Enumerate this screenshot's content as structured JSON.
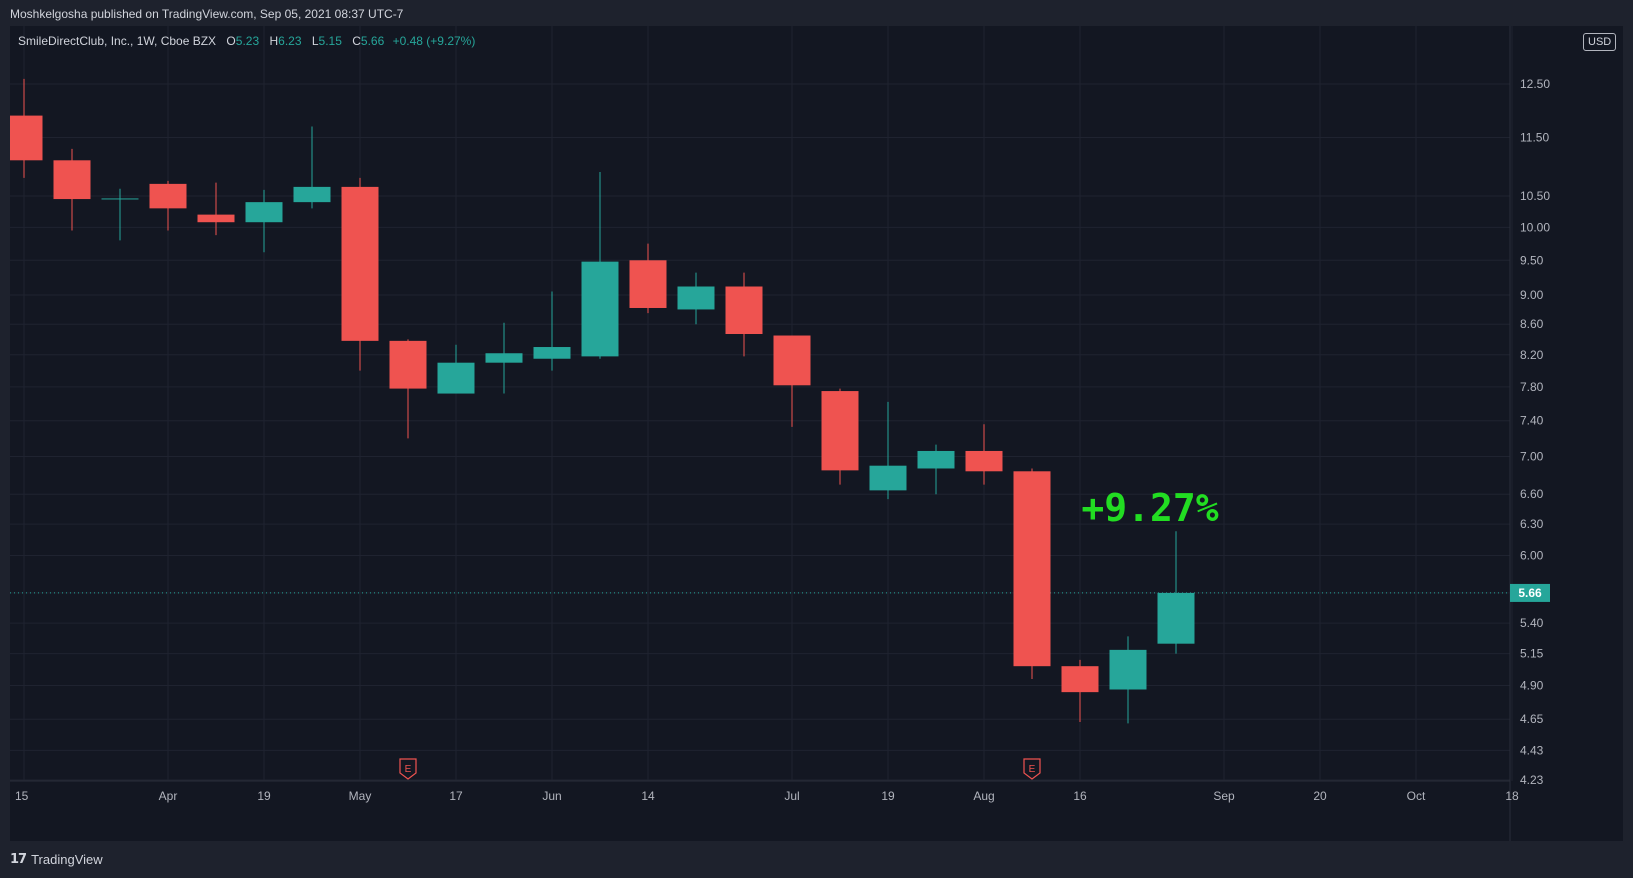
{
  "header": {
    "publish_line": "Moshkelgosha published on TradingView.com, Sep 05, 2021 08:37 UTC-7"
  },
  "legend": {
    "symbol_line": "SmileDirectClub, Inc., 1W, Cboe BZX",
    "open_label": "O",
    "open_value": "5.23",
    "high_label": "H",
    "high_value": "6.23",
    "low_label": "L",
    "low_value": "5.15",
    "close_label": "C",
    "close_value": "5.66",
    "change": "+0.48 (+9.27%)"
  },
  "currency": "USD",
  "footer": {
    "brand_logo": "17",
    "brand_name": "TradingView"
  },
  "chart_data": {
    "type": "candlestick",
    "interval": "1W",
    "y_scale": "log",
    "ylim": [
      4.2,
      13.5
    ],
    "colors": {
      "up": "#26a69a",
      "down": "#ef5350",
      "last_price_line": "#26a69a",
      "annotation": "#22dd22",
      "earnings": "#ef5350"
    },
    "y_ticks": [
      "4.23",
      "4.43",
      "4.65",
      "4.90",
      "5.15",
      "5.40",
      "5.66",
      "6.00",
      "6.30",
      "6.60",
      "7.00",
      "7.40",
      "7.80",
      "8.20",
      "8.60",
      "9.00",
      "9.50",
      "10.00",
      "10.50",
      "11.50",
      "12.50"
    ],
    "x_ticks": [
      {
        "label": "15",
        "date": "2021-03-15"
      },
      {
        "label": "Apr",
        "date": "2021-04-05"
      },
      {
        "label": "19",
        "date": "2021-04-19"
      },
      {
        "label": "May",
        "date": "2021-05-03"
      },
      {
        "label": "17",
        "date": "2021-05-17"
      },
      {
        "label": "Jun",
        "date": "2021-05-31"
      },
      {
        "label": "14",
        "date": "2021-06-14"
      },
      {
        "label": "Jul",
        "date": "2021-07-05"
      },
      {
        "label": "19",
        "date": "2021-07-19"
      },
      {
        "label": "Aug",
        "date": "2021-08-02"
      },
      {
        "label": "16",
        "date": "2021-08-16"
      },
      {
        "label": "Sep",
        "date": "2021-09-06"
      },
      {
        "label": "20",
        "date": "2021-09-20"
      },
      {
        "label": "Oct",
        "date": "2021-10-04"
      },
      {
        "label": "18",
        "date": "2021-10-18"
      }
    ],
    "candles": [
      {
        "date": "2021-03-15",
        "open": 11.9,
        "high": 12.6,
        "low": 10.8,
        "close": 11.1
      },
      {
        "date": "2021-03-22",
        "open": 11.1,
        "high": 11.3,
        "low": 9.95,
        "close": 10.45
      },
      {
        "date": "2021-03-29",
        "open": 10.45,
        "high": 10.62,
        "low": 9.8,
        "close": 10.46
      },
      {
        "date": "2021-04-05",
        "open": 10.7,
        "high": 10.75,
        "low": 9.95,
        "close": 10.3
      },
      {
        "date": "2021-04-12",
        "open": 10.2,
        "high": 10.72,
        "low": 9.88,
        "close": 10.08
      },
      {
        "date": "2021-04-19",
        "open": 10.08,
        "high": 10.6,
        "low": 9.62,
        "close": 10.4
      },
      {
        "date": "2021-04-26",
        "open": 10.4,
        "high": 11.7,
        "low": 10.3,
        "close": 10.65
      },
      {
        "date": "2021-05-03",
        "open": 10.65,
        "high": 10.8,
        "low": 8.0,
        "close": 8.38
      },
      {
        "date": "2021-05-10",
        "open": 8.38,
        "high": 8.4,
        "low": 7.2,
        "close": 7.78
      },
      {
        "date": "2021-05-17",
        "open": 7.72,
        "high": 8.33,
        "low": 7.72,
        "close": 8.1
      },
      {
        "date": "2021-05-24",
        "open": 8.1,
        "high": 8.62,
        "low": 7.72,
        "close": 8.22
      },
      {
        "date": "2021-05-31",
        "open": 8.15,
        "high": 9.05,
        "low": 8.0,
        "close": 8.3
      },
      {
        "date": "2021-06-07",
        "open": 8.18,
        "high": 10.9,
        "low": 8.15,
        "close": 9.48
      },
      {
        "date": "2021-06-14",
        "open": 9.5,
        "high": 9.75,
        "low": 8.75,
        "close": 8.82
      },
      {
        "date": "2021-06-21",
        "open": 8.8,
        "high": 9.32,
        "low": 8.6,
        "close": 9.12
      },
      {
        "date": "2021-06-28",
        "open": 9.12,
        "high": 9.32,
        "low": 8.18,
        "close": 8.47
      },
      {
        "date": "2021-07-05",
        "open": 8.45,
        "high": 8.45,
        "low": 7.33,
        "close": 7.82
      },
      {
        "date": "2021-07-12",
        "open": 7.75,
        "high": 7.78,
        "low": 6.7,
        "close": 6.85
      },
      {
        "date": "2021-07-19",
        "open": 6.64,
        "high": 7.62,
        "low": 6.55,
        "close": 6.9
      },
      {
        "date": "2021-07-26",
        "open": 6.87,
        "high": 7.13,
        "low": 6.6,
        "close": 7.06
      },
      {
        "date": "2021-08-02",
        "open": 7.06,
        "high": 7.36,
        "low": 6.7,
        "close": 6.84
      },
      {
        "date": "2021-08-09",
        "open": 6.84,
        "high": 6.87,
        "low": 4.95,
        "close": 5.05
      },
      {
        "date": "2021-08-16",
        "open": 5.05,
        "high": 5.1,
        "low": 4.63,
        "close": 4.85
      },
      {
        "date": "2021-08-23",
        "open": 4.87,
        "high": 5.29,
        "low": 4.62,
        "close": 5.18
      },
      {
        "date": "2021-08-30",
        "open": 5.23,
        "high": 6.23,
        "low": 5.15,
        "close": 5.66
      }
    ],
    "last_price": 5.66,
    "last_price_label": "5.66",
    "annotation_text": "+9.27%",
    "earnings_marker_label": "E",
    "earnings_dates": [
      "2021-05-10",
      "2021-08-09"
    ]
  }
}
